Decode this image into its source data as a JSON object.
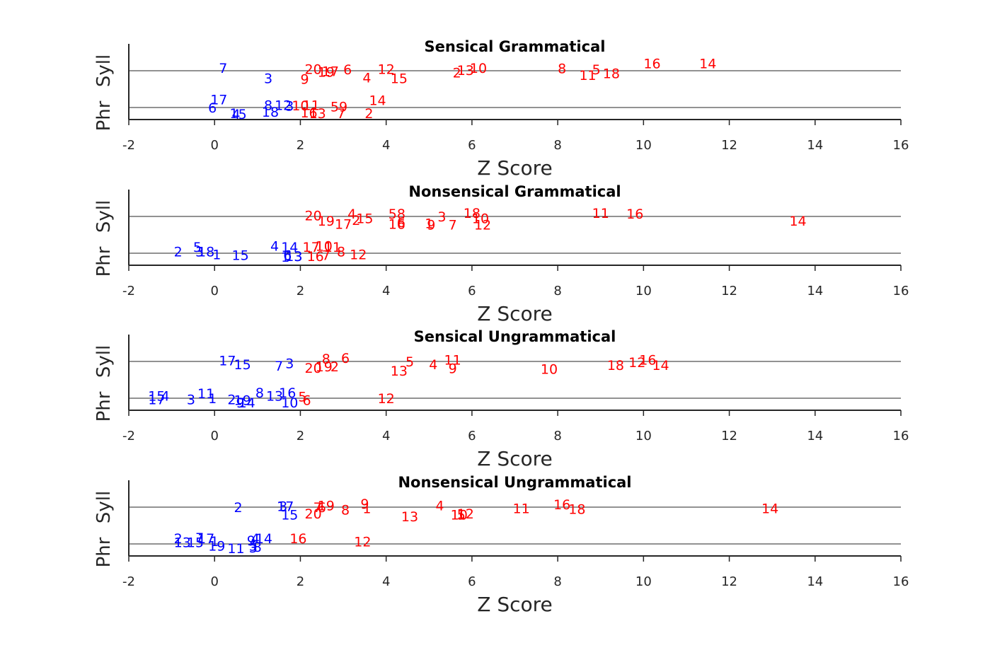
{
  "colors": {
    "positive": "#ff0000",
    "nonsignificant": "#0000ff",
    "axis": "#262626"
  },
  "chart_data": [
    {
      "type": "scatter",
      "title": "Sensical Grammatical",
      "xlabel": "Z Score",
      "categories": [
        "Phr",
        "Syll"
      ],
      "xlim": [
        -2,
        16
      ],
      "xticks": [
        -2,
        0,
        2,
        4,
        6,
        8,
        10,
        12,
        14,
        16
      ],
      "points": [
        {
          "label": "7",
          "x": 0.2,
          "y": 1.08,
          "color": "#0000ff"
        },
        {
          "label": "3",
          "x": 1.25,
          "y": 0.8,
          "color": "#0000ff"
        },
        {
          "label": "20",
          "x": 2.3,
          "y": 1.05,
          "color": "#ff0000"
        },
        {
          "label": "9",
          "x": 2.1,
          "y": 0.78,
          "color": "#ff0000"
        },
        {
          "label": "19",
          "x": 2.6,
          "y": 0.97,
          "color": "#ff0000"
        },
        {
          "label": "17",
          "x": 2.7,
          "y": 0.99,
          "color": "#ff0000"
        },
        {
          "label": "6",
          "x": 3.1,
          "y": 1.04,
          "color": "#ff0000"
        },
        {
          "label": "4",
          "x": 3.55,
          "y": 0.82,
          "color": "#ff0000"
        },
        {
          "label": "12",
          "x": 4.0,
          "y": 1.05,
          "color": "#ff0000"
        },
        {
          "label": "15",
          "x": 4.3,
          "y": 0.8,
          "color": "#ff0000"
        },
        {
          "label": "2",
          "x": 5.65,
          "y": 0.95,
          "color": "#ff0000"
        },
        {
          "label": "13",
          "x": 5.85,
          "y": 1.02,
          "color": "#ff0000"
        },
        {
          "label": "10",
          "x": 6.15,
          "y": 1.08,
          "color": "#ff0000"
        },
        {
          "label": "8",
          "x": 8.1,
          "y": 1.07,
          "color": "#ff0000"
        },
        {
          "label": "11",
          "x": 8.7,
          "y": 0.88,
          "color": "#ff0000"
        },
        {
          "label": "5",
          "x": 8.9,
          "y": 1.04,
          "color": "#ff0000"
        },
        {
          "label": "18",
          "x": 9.25,
          "y": 0.93,
          "color": "#ff0000"
        },
        {
          "label": "16",
          "x": 10.2,
          "y": 1.2,
          "color": "#ff0000"
        },
        {
          "label": "14",
          "x": 11.5,
          "y": 1.2,
          "color": "#ff0000"
        },
        {
          "label": "17",
          "x": 0.1,
          "y": 0.22,
          "color": "#0000ff"
        },
        {
          "label": "6",
          "x": -0.05,
          "y": 0.0,
          "color": "#0000ff"
        },
        {
          "label": "1",
          "x": 0.45,
          "y": -0.15,
          "color": "#0000ff"
        },
        {
          "label": "4",
          "x": 0.5,
          "y": -0.17,
          "color": "#0000ff"
        },
        {
          "label": "5",
          "x": 0.65,
          "y": -0.17,
          "color": "#0000ff"
        },
        {
          "label": "8",
          "x": 1.25,
          "y": 0.07,
          "color": "#0000ff"
        },
        {
          "label": "18",
          "x": 1.3,
          "y": -0.12,
          "color": "#0000ff"
        },
        {
          "label": "12",
          "x": 1.6,
          "y": 0.07,
          "color": "#0000ff"
        },
        {
          "label": "3",
          "x": 1.75,
          "y": 0.05,
          "color": "#0000ff"
        },
        {
          "label": "10",
          "x": 2.0,
          "y": 0.06,
          "color": "#ff0000"
        },
        {
          "label": "11",
          "x": 2.25,
          "y": 0.07,
          "color": "#ff0000"
        },
        {
          "label": "16",
          "x": 2.2,
          "y": -0.13,
          "color": "#ff0000"
        },
        {
          "label": "13",
          "x": 2.4,
          "y": -0.15,
          "color": "#ff0000"
        },
        {
          "label": "5",
          "x": 2.8,
          "y": 0.03,
          "color": "#ff0000"
        },
        {
          "label": "9",
          "x": 3.0,
          "y": 0.03,
          "color": "#ff0000"
        },
        {
          "label": "7",
          "x": 2.95,
          "y": -0.15,
          "color": "#ff0000"
        },
        {
          "label": "14",
          "x": 3.8,
          "y": 0.2,
          "color": "#ff0000"
        },
        {
          "label": "2",
          "x": 3.6,
          "y": -0.15,
          "color": "#ff0000"
        }
      ]
    },
    {
      "type": "scatter",
      "title": "Nonsensical Grammatical",
      "xlabel": "Z Score",
      "categories": [
        "Phr",
        "Syll"
      ],
      "xlim": [
        -2,
        16
      ],
      "xticks": [
        -2,
        0,
        2,
        4,
        6,
        8,
        10,
        12,
        14,
        16
      ],
      "points": [
        {
          "label": "20",
          "x": 2.3,
          "y": 1.03,
          "color": "#ff0000"
        },
        {
          "label": "19",
          "x": 2.6,
          "y": 0.88,
          "color": "#ff0000"
        },
        {
          "label": "4",
          "x": 3.2,
          "y": 1.08,
          "color": "#ff0000"
        },
        {
          "label": "17",
          "x": 3.0,
          "y": 0.8,
          "color": "#ff0000"
        },
        {
          "label": "2",
          "x": 3.3,
          "y": 0.9,
          "color": "#ff0000"
        },
        {
          "label": "15",
          "x": 3.5,
          "y": 0.95,
          "color": "#ff0000"
        },
        {
          "label": "5",
          "x": 4.15,
          "y": 1.08,
          "color": "#ff0000"
        },
        {
          "label": "8",
          "x": 4.35,
          "y": 1.08,
          "color": "#ff0000"
        },
        {
          "label": "16",
          "x": 4.25,
          "y": 0.8,
          "color": "#ff0000"
        },
        {
          "label": "6",
          "x": 4.35,
          "y": 0.85,
          "color": "#ff0000"
        },
        {
          "label": "1",
          "x": 5.0,
          "y": 0.82,
          "color": "#ff0000"
        },
        {
          "label": "9",
          "x": 5.05,
          "y": 0.78,
          "color": "#ff0000"
        },
        {
          "label": "3",
          "x": 5.3,
          "y": 1.0,
          "color": "#ff0000"
        },
        {
          "label": "7",
          "x": 5.55,
          "y": 0.78,
          "color": "#ff0000"
        },
        {
          "label": "18",
          "x": 6.0,
          "y": 1.1,
          "color": "#ff0000"
        },
        {
          "label": "10",
          "x": 6.2,
          "y": 0.95,
          "color": "#ff0000"
        },
        {
          "label": "12",
          "x": 6.25,
          "y": 0.78,
          "color": "#ff0000"
        },
        {
          "label": "11",
          "x": 9.0,
          "y": 1.1,
          "color": "#ff0000"
        },
        {
          "label": "16",
          "x": 9.8,
          "y": 1.08,
          "color": "#ff0000"
        },
        {
          "label": "14",
          "x": 13.6,
          "y": 0.88,
          "color": "#ff0000"
        },
        {
          "label": "2",
          "x": -0.85,
          "y": 0.05,
          "color": "#0000ff"
        },
        {
          "label": "5",
          "x": -0.4,
          "y": 0.17,
          "color": "#0000ff"
        },
        {
          "label": "3",
          "x": -0.35,
          "y": 0.05,
          "color": "#0000ff"
        },
        {
          "label": "18",
          "x": -0.2,
          "y": 0.05,
          "color": "#0000ff"
        },
        {
          "label": "1",
          "x": 0.05,
          "y": -0.03,
          "color": "#0000ff"
        },
        {
          "label": "15",
          "x": 0.6,
          "y": -0.05,
          "color": "#0000ff"
        },
        {
          "label": "4",
          "x": 1.4,
          "y": 0.2,
          "color": "#0000ff"
        },
        {
          "label": "14",
          "x": 1.75,
          "y": 0.17,
          "color": "#0000ff"
        },
        {
          "label": "6",
          "x": 1.7,
          "y": -0.05,
          "color": "#0000ff"
        },
        {
          "label": "1",
          "x": 1.65,
          "y": -0.1,
          "color": "#0000ff"
        },
        {
          "label": "3",
          "x": 1.95,
          "y": -0.08,
          "color": "#0000ff"
        },
        {
          "label": "13",
          "x": 1.85,
          "y": -0.08,
          "color": "#0000ff"
        },
        {
          "label": "17",
          "x": 2.25,
          "y": 0.17,
          "color": "#ff0000"
        },
        {
          "label": "10",
          "x": 2.55,
          "y": 0.2,
          "color": "#ff0000"
        },
        {
          "label": "11",
          "x": 2.75,
          "y": 0.17,
          "color": "#ff0000"
        },
        {
          "label": "16",
          "x": 2.35,
          "y": -0.08,
          "color": "#ff0000"
        },
        {
          "label": "7",
          "x": 2.6,
          "y": -0.05,
          "color": "#ff0000"
        },
        {
          "label": "8",
          "x": 2.95,
          "y": 0.05,
          "color": "#ff0000"
        },
        {
          "label": "12",
          "x": 3.35,
          "y": -0.03,
          "color": "#ff0000"
        }
      ]
    },
    {
      "type": "scatter",
      "title": "Sensical Ungrammatical",
      "xlabel": "Z Score",
      "categories": [
        "Phr",
        "Syll"
      ],
      "xlim": [
        -2,
        16
      ],
      "xticks": [
        -2,
        0,
        2,
        4,
        6,
        8,
        10,
        12,
        14,
        16
      ],
      "points": [
        {
          "label": "17",
          "x": 0.3,
          "y": 1.03,
          "color": "#0000ff"
        },
        {
          "label": "15",
          "x": 0.65,
          "y": 0.92,
          "color": "#0000ff"
        },
        {
          "label": "7",
          "x": 1.5,
          "y": 0.88,
          "color": "#0000ff"
        },
        {
          "label": "3",
          "x": 1.75,
          "y": 0.95,
          "color": "#0000ff"
        },
        {
          "label": "20",
          "x": 2.3,
          "y": 0.83,
          "color": "#ff0000"
        },
        {
          "label": "19",
          "x": 2.55,
          "y": 0.87,
          "color": "#ff0000"
        },
        {
          "label": "2",
          "x": 2.8,
          "y": 0.87,
          "color": "#ff0000"
        },
        {
          "label": "8",
          "x": 2.6,
          "y": 1.08,
          "color": "#ff0000"
        },
        {
          "label": "6",
          "x": 3.05,
          "y": 1.1,
          "color": "#ff0000"
        },
        {
          "label": "5",
          "x": 4.55,
          "y": 1.0,
          "color": "#ff0000"
        },
        {
          "label": "13",
          "x": 4.3,
          "y": 0.75,
          "color": "#ff0000"
        },
        {
          "label": "4",
          "x": 5.1,
          "y": 0.92,
          "color": "#ff0000"
        },
        {
          "label": "11",
          "x": 5.55,
          "y": 1.05,
          "color": "#ff0000"
        },
        {
          "label": "9",
          "x": 5.55,
          "y": 0.82,
          "color": "#ff0000"
        },
        {
          "label": "10",
          "x": 7.8,
          "y": 0.8,
          "color": "#ff0000"
        },
        {
          "label": "18",
          "x": 9.35,
          "y": 0.9,
          "color": "#ff0000"
        },
        {
          "label": "12",
          "x": 9.85,
          "y": 0.98,
          "color": "#ff0000"
        },
        {
          "label": "16",
          "x": 10.1,
          "y": 1.05,
          "color": "#ff0000"
        },
        {
          "label": "14",
          "x": 10.4,
          "y": 0.9,
          "color": "#ff0000"
        },
        {
          "label": "15",
          "x": -1.35,
          "y": 0.07,
          "color": "#0000ff"
        },
        {
          "label": "17",
          "x": -1.35,
          "y": -0.03,
          "color": "#0000ff"
        },
        {
          "label": "4",
          "x": -1.15,
          "y": 0.07,
          "color": "#0000ff"
        },
        {
          "label": "3",
          "x": -0.55,
          "y": -0.03,
          "color": "#0000ff"
        },
        {
          "label": "11",
          "x": -0.2,
          "y": 0.13,
          "color": "#0000ff"
        },
        {
          "label": "1",
          "x": -0.05,
          "y": 0.0,
          "color": "#0000ff"
        },
        {
          "label": "2",
          "x": 0.4,
          "y": -0.03,
          "color": "#0000ff"
        },
        {
          "label": "19",
          "x": 0.65,
          "y": -0.05,
          "color": "#0000ff"
        },
        {
          "label": "9",
          "x": 0.6,
          "y": -0.12,
          "color": "#0000ff"
        },
        {
          "label": "14",
          "x": 0.75,
          "y": -0.12,
          "color": "#0000ff"
        },
        {
          "label": "8",
          "x": 1.05,
          "y": 0.15,
          "color": "#0000ff"
        },
        {
          "label": "13",
          "x": 1.4,
          "y": 0.07,
          "color": "#0000ff"
        },
        {
          "label": "16",
          "x": 1.7,
          "y": 0.15,
          "color": "#0000ff"
        },
        {
          "label": "10",
          "x": 1.75,
          "y": -0.12,
          "color": "#0000ff"
        },
        {
          "label": "5",
          "x": 2.05,
          "y": 0.05,
          "color": "#ff0000"
        },
        {
          "label": "6",
          "x": 2.15,
          "y": -0.05,
          "color": "#ff0000"
        },
        {
          "label": "12",
          "x": 4.0,
          "y": 0.0,
          "color": "#ff0000"
        }
      ]
    },
    {
      "type": "scatter",
      "title": "Nonsensical Ungrammatical",
      "xlabel": "Z Score",
      "categories": [
        "Phr",
        "Syll"
      ],
      "xlim": [
        -2,
        16
      ],
      "xticks": [
        -2,
        0,
        2,
        4,
        6,
        8,
        10,
        12,
        14,
        16
      ],
      "points": [
        {
          "label": "2",
          "x": 0.55,
          "y": 1.0,
          "color": "#0000ff"
        },
        {
          "label": "1",
          "x": 1.55,
          "y": 1.03,
          "color": "#0000ff"
        },
        {
          "label": "3",
          "x": 1.6,
          "y": 1.03,
          "color": "#0000ff"
        },
        {
          "label": "17",
          "x": 1.65,
          "y": 1.03,
          "color": "#0000ff"
        },
        {
          "label": "15",
          "x": 1.75,
          "y": 0.8,
          "color": "#0000ff"
        },
        {
          "label": "20",
          "x": 2.3,
          "y": 0.83,
          "color": "#ff0000"
        },
        {
          "label": "7",
          "x": 2.4,
          "y": 1.0,
          "color": "#ff0000"
        },
        {
          "label": "6",
          "x": 2.5,
          "y": 1.0,
          "color": "#ff0000"
        },
        {
          "label": "19",
          "x": 2.6,
          "y": 1.05,
          "color": "#ff0000"
        },
        {
          "label": "8",
          "x": 3.05,
          "y": 0.93,
          "color": "#ff0000"
        },
        {
          "label": "9",
          "x": 3.5,
          "y": 1.1,
          "color": "#ff0000"
        },
        {
          "label": "1",
          "x": 3.55,
          "y": 0.97,
          "color": "#ff0000"
        },
        {
          "label": "13",
          "x": 4.55,
          "y": 0.75,
          "color": "#ff0000"
        },
        {
          "label": "4",
          "x": 5.25,
          "y": 1.05,
          "color": "#ff0000"
        },
        {
          "label": "10",
          "x": 5.7,
          "y": 0.8,
          "color": "#ff0000"
        },
        {
          "label": "5",
          "x": 5.75,
          "y": 0.8,
          "color": "#ff0000"
        },
        {
          "label": "12",
          "x": 5.85,
          "y": 0.83,
          "color": "#ff0000"
        },
        {
          "label": "11",
          "x": 7.15,
          "y": 0.97,
          "color": "#ff0000"
        },
        {
          "label": "16",
          "x": 8.1,
          "y": 1.08,
          "color": "#ff0000"
        },
        {
          "label": "18",
          "x": 8.45,
          "y": 0.95,
          "color": "#ff0000"
        },
        {
          "label": "14",
          "x": 12.95,
          "y": 0.97,
          "color": "#ff0000"
        },
        {
          "label": "2",
          "x": -0.85,
          "y": 0.15,
          "color": "#0000ff"
        },
        {
          "label": "13",
          "x": -0.75,
          "y": 0.05,
          "color": "#0000ff"
        },
        {
          "label": "15",
          "x": -0.45,
          "y": 0.05,
          "color": "#0000ff"
        },
        {
          "label": "7",
          "x": -0.35,
          "y": 0.17,
          "color": "#0000ff"
        },
        {
          "label": "17",
          "x": -0.2,
          "y": 0.15,
          "color": "#0000ff"
        },
        {
          "label": "1",
          "x": 0.0,
          "y": 0.08,
          "color": "#0000ff"
        },
        {
          "label": "19",
          "x": 0.05,
          "y": -0.05,
          "color": "#0000ff"
        },
        {
          "label": "11",
          "x": 0.5,
          "y": -0.12,
          "color": "#0000ff"
        },
        {
          "label": "9",
          "x": 0.85,
          "y": 0.1,
          "color": "#0000ff"
        },
        {
          "label": "4",
          "x": 0.95,
          "y": 0.15,
          "color": "#0000ff"
        },
        {
          "label": "5",
          "x": 0.9,
          "y": -0.05,
          "color": "#0000ff"
        },
        {
          "label": "3",
          "x": 0.9,
          "y": -0.1,
          "color": "#0000ff"
        },
        {
          "label": "8",
          "x": 1.0,
          "y": -0.08,
          "color": "#0000ff"
        },
        {
          "label": "14",
          "x": 1.15,
          "y": 0.15,
          "color": "#0000ff"
        },
        {
          "label": "16",
          "x": 1.95,
          "y": 0.15,
          "color": "#ff0000"
        },
        {
          "label": "12",
          "x": 3.45,
          "y": 0.07,
          "color": "#ff0000"
        }
      ]
    }
  ]
}
